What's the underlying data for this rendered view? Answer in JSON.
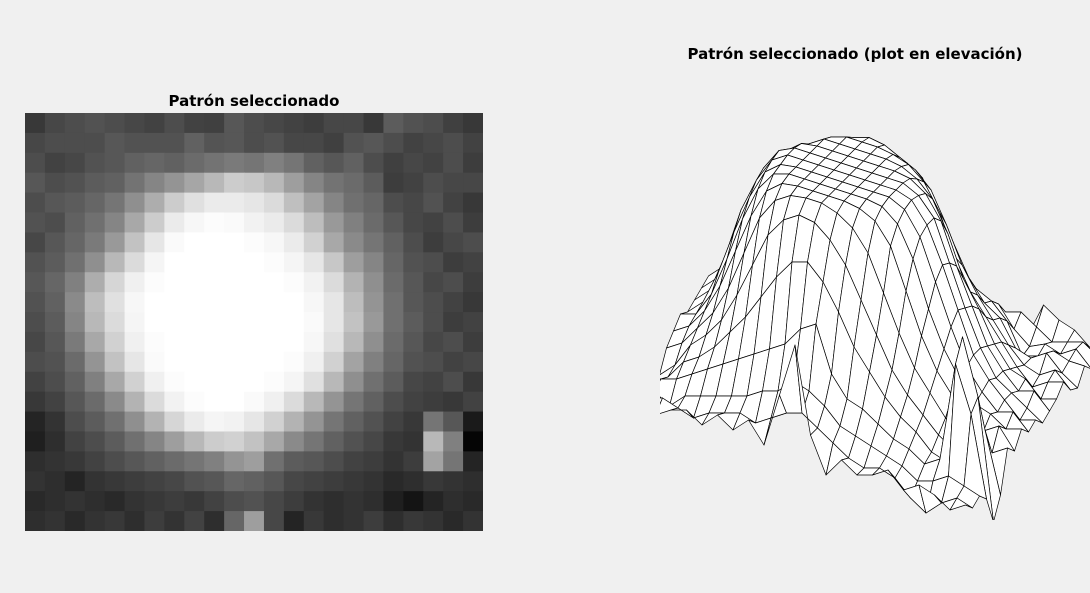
{
  "window": {
    "background": "#f0f0f0"
  },
  "chart_data": [
    {
      "type": "heatmap",
      "title": "Patrón seleccionado",
      "colormap": "gray",
      "rows": 21,
      "cols": 23,
      "grid": false,
      "values": [
        [
          0.22,
          0.28,
          0.3,
          0.32,
          0.3,
          0.28,
          0.26,
          0.3,
          0.26,
          0.25,
          0.34,
          0.3,
          0.28,
          0.26,
          0.24,
          0.28,
          0.28,
          0.22,
          0.36,
          0.32,
          0.3,
          0.25,
          0.22
        ],
        [
          0.28,
          0.3,
          0.3,
          0.3,
          0.34,
          0.32,
          0.32,
          0.32,
          0.38,
          0.33,
          0.34,
          0.3,
          0.32,
          0.28,
          0.28,
          0.25,
          0.32,
          0.34,
          0.3,
          0.26,
          0.28,
          0.3,
          0.26
        ],
        [
          0.3,
          0.26,
          0.28,
          0.32,
          0.34,
          0.38,
          0.4,
          0.38,
          0.42,
          0.45,
          0.48,
          0.46,
          0.5,
          0.46,
          0.38,
          0.34,
          0.38,
          0.3,
          0.25,
          0.28,
          0.26,
          0.3,
          0.24
        ],
        [
          0.34,
          0.3,
          0.32,
          0.36,
          0.38,
          0.45,
          0.52,
          0.58,
          0.65,
          0.72,
          0.8,
          0.78,
          0.72,
          0.62,
          0.52,
          0.45,
          0.42,
          0.36,
          0.24,
          0.26,
          0.3,
          0.28,
          0.28
        ],
        [
          0.3,
          0.34,
          0.36,
          0.4,
          0.46,
          0.56,
          0.68,
          0.8,
          0.88,
          0.92,
          0.92,
          0.9,
          0.86,
          0.75,
          0.64,
          0.52,
          0.44,
          0.4,
          0.3,
          0.28,
          0.32,
          0.26,
          0.22
        ],
        [
          0.32,
          0.3,
          0.38,
          0.44,
          0.52,
          0.66,
          0.8,
          0.92,
          0.97,
          0.99,
          0.98,
          0.95,
          0.92,
          0.86,
          0.74,
          0.6,
          0.5,
          0.42,
          0.34,
          0.28,
          0.26,
          0.3,
          0.24
        ],
        [
          0.28,
          0.34,
          0.4,
          0.48,
          0.6,
          0.76,
          0.9,
          0.98,
          1.0,
          1.0,
          1.0,
          0.99,
          0.97,
          0.92,
          0.82,
          0.66,
          0.54,
          0.46,
          0.38,
          0.3,
          0.24,
          0.28,
          0.3
        ],
        [
          0.32,
          0.36,
          0.44,
          0.56,
          0.72,
          0.86,
          0.96,
          1.0,
          1.0,
          1.0,
          1.0,
          1.0,
          0.99,
          0.96,
          0.9,
          0.78,
          0.62,
          0.52,
          0.4,
          0.32,
          0.3,
          0.24,
          0.26
        ],
        [
          0.34,
          0.4,
          0.5,
          0.68,
          0.84,
          0.94,
          0.99,
          1.0,
          1.0,
          1.0,
          1.0,
          1.0,
          1.0,
          0.99,
          0.95,
          0.86,
          0.7,
          0.56,
          0.42,
          0.34,
          0.28,
          0.3,
          0.24
        ],
        [
          0.32,
          0.38,
          0.54,
          0.74,
          0.88,
          0.97,
          1.0,
          1.0,
          1.0,
          1.0,
          1.0,
          1.0,
          1.0,
          1.0,
          0.97,
          0.9,
          0.74,
          0.58,
          0.44,
          0.34,
          0.3,
          0.26,
          0.22
        ],
        [
          0.3,
          0.36,
          0.52,
          0.72,
          0.86,
          0.96,
          1.0,
          1.0,
          1.0,
          1.0,
          1.0,
          1.0,
          1.0,
          1.0,
          0.98,
          0.9,
          0.76,
          0.6,
          0.44,
          0.36,
          0.3,
          0.24,
          0.26
        ],
        [
          0.28,
          0.34,
          0.48,
          0.66,
          0.82,
          0.94,
          0.99,
          1.0,
          1.0,
          1.0,
          1.0,
          1.0,
          1.0,
          1.0,
          0.97,
          0.88,
          0.72,
          0.56,
          0.42,
          0.34,
          0.28,
          0.3,
          0.24
        ],
        [
          0.3,
          0.32,
          0.42,
          0.58,
          0.76,
          0.9,
          0.98,
          1.0,
          1.0,
          1.0,
          1.0,
          1.0,
          1.0,
          0.99,
          0.94,
          0.82,
          0.64,
          0.5,
          0.4,
          0.32,
          0.3,
          0.26,
          0.28
        ],
        [
          0.26,
          0.3,
          0.38,
          0.5,
          0.66,
          0.82,
          0.94,
          0.99,
          1.0,
          1.0,
          1.0,
          1.0,
          0.99,
          0.96,
          0.88,
          0.72,
          0.56,
          0.44,
          0.36,
          0.28,
          0.26,
          0.3,
          0.22
        ],
        [
          0.22,
          0.26,
          0.34,
          0.42,
          0.54,
          0.7,
          0.86,
          0.95,
          0.99,
          1.0,
          1.0,
          0.98,
          0.94,
          0.86,
          0.72,
          0.58,
          0.46,
          0.38,
          0.3,
          0.26,
          0.24,
          0.22,
          0.26
        ],
        [
          0.14,
          0.2,
          0.3,
          0.36,
          0.44,
          0.56,
          0.7,
          0.84,
          0.92,
          0.96,
          0.95,
          0.9,
          0.82,
          0.7,
          0.58,
          0.46,
          0.38,
          0.32,
          0.26,
          0.22,
          0.46,
          0.34,
          0.1
        ],
        [
          0.12,
          0.18,
          0.26,
          0.3,
          0.36,
          0.44,
          0.52,
          0.62,
          0.72,
          0.8,
          0.82,
          0.76,
          0.66,
          0.54,
          0.46,
          0.38,
          0.32,
          0.28,
          0.22,
          0.2,
          0.72,
          0.5,
          0.02
        ],
        [
          0.18,
          0.2,
          0.22,
          0.26,
          0.3,
          0.34,
          0.38,
          0.42,
          0.46,
          0.5,
          0.58,
          0.62,
          0.44,
          0.36,
          0.34,
          0.3,
          0.26,
          0.24,
          0.2,
          0.24,
          0.64,
          0.46,
          0.14
        ],
        [
          0.2,
          0.18,
          0.14,
          0.2,
          0.22,
          0.24,
          0.26,
          0.28,
          0.32,
          0.34,
          0.4,
          0.38,
          0.34,
          0.28,
          0.26,
          0.24,
          0.22,
          0.2,
          0.16,
          0.18,
          0.22,
          0.2,
          0.18
        ],
        [
          0.16,
          0.18,
          0.2,
          0.18,
          0.16,
          0.2,
          0.22,
          0.24,
          0.22,
          0.26,
          0.3,
          0.32,
          0.28,
          0.24,
          0.2,
          0.18,
          0.2,
          0.18,
          0.12,
          0.08,
          0.14,
          0.18,
          0.16
        ],
        [
          0.18,
          0.2,
          0.16,
          0.2,
          0.22,
          0.18,
          0.24,
          0.2,
          0.26,
          0.18,
          0.4,
          0.62,
          0.28,
          0.14,
          0.22,
          0.18,
          0.2,
          0.24,
          0.18,
          0.22,
          0.2,
          0.16,
          0.2
        ]
      ]
    },
    {
      "type": "surface",
      "title": "Patrón seleccionado (plot en elevación)",
      "style": "mesh",
      "axis": "off",
      "source": "same matrix as heatmap",
      "face_color": "#ffffff",
      "edge_color": "#000000"
    }
  ]
}
